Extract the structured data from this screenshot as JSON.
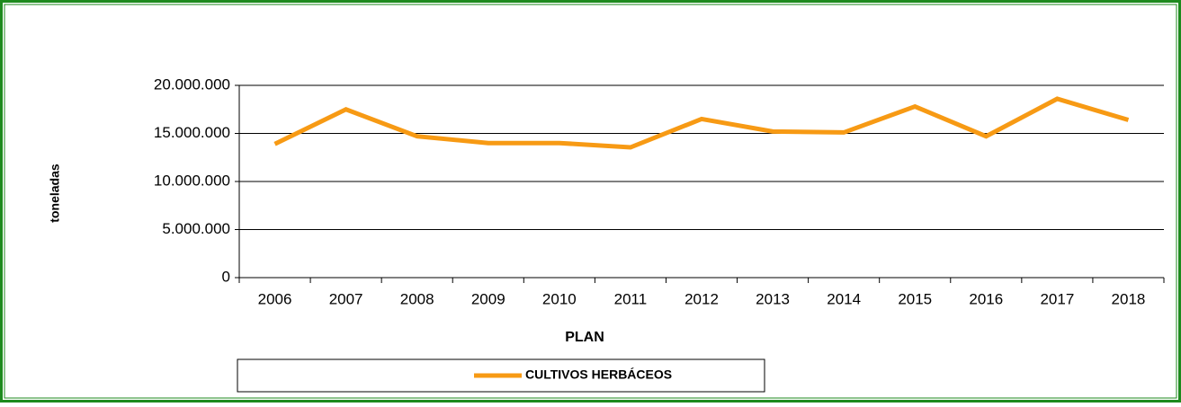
{
  "chart_data": {
    "type": "line",
    "xlabel": "PLAN",
    "ylabel": "toneladas",
    "categories": [
      "2006",
      "2007",
      "2008",
      "2009",
      "2010",
      "2011",
      "2012",
      "2013",
      "2014",
      "2015",
      "2016",
      "2017",
      "2018"
    ],
    "series": [
      {
        "name": "CULTIVOS HERBÁCEOS",
        "color": "#f79a14",
        "values": [
          13900000,
          17500000,
          14700000,
          14000000,
          14000000,
          13550000,
          16500000,
          15200000,
          15100000,
          17800000,
          14700000,
          18600000,
          16400000
        ]
      }
    ],
    "ylim": [
      0,
      20000000
    ],
    "yticks": [
      0,
      {
        "value": 5000000,
        "label": "5.000.000"
      },
      {
        "value": 10000000,
        "label": "10.000.000"
      },
      {
        "value": 15000000,
        "label": "15.000.000"
      },
      {
        "value": 20000000,
        "label": "20.000.000"
      }
    ],
    "grid": true,
    "legend": "bottom"
  }
}
